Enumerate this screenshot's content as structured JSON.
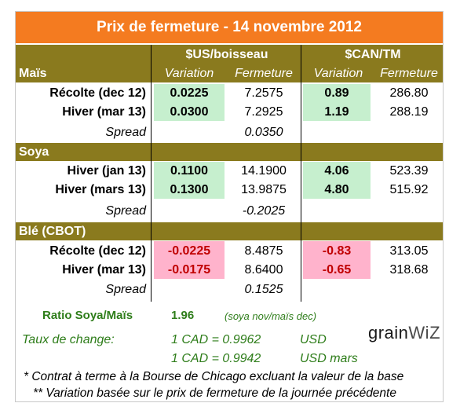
{
  "title": "Prix de fermeture - 14 novembre 2012",
  "headers": {
    "usd_group": "$US/boisseau",
    "cad_group": "$CAN/TM",
    "variation": "Variation",
    "fermeture": "Fermeture"
  },
  "sections": [
    {
      "name": "Maïs",
      "rows": [
        {
          "label": "Récolte (dec 12)",
          "us_var": "0.0225",
          "us_close": "7.2575",
          "cad_var": "0.89",
          "cad_close": "286.80"
        },
        {
          "label": "Hiver (mar 13)",
          "us_var": "0.0300",
          "us_close": "7.2925",
          "cad_var": "1.19",
          "cad_close": "288.19"
        }
      ],
      "spread_label": "Spread",
      "spread": "0.0350"
    },
    {
      "name": "Soya",
      "rows": [
        {
          "label": "Hiver (jan 13)",
          "us_var": "0.1100",
          "us_close": "14.1900",
          "cad_var": "4.06",
          "cad_close": "523.39"
        },
        {
          "label": "Hiver (mars 13)",
          "us_var": "0.1300",
          "us_close": "13.9875",
          "cad_var": "4.80",
          "cad_close": "515.92"
        }
      ],
      "spread_label": "Spread",
      "spread": "-0.2025"
    },
    {
      "name": "Blé (CBOT)",
      "rows": [
        {
          "label": "Récolte (dec 12)",
          "us_var": "-0.0225",
          "us_close": "8.4875",
          "cad_var": "-0.83",
          "cad_close": "313.05"
        },
        {
          "label": "Hiver (mar 13)",
          "us_var": "-0.0175",
          "us_close": "8.6400",
          "cad_var": "-0.65",
          "cad_close": "318.68"
        }
      ],
      "spread_label": "Spread",
      "spread": "0.1525"
    }
  ],
  "ratio": {
    "label": "Ratio Soya/Maïs",
    "value": "1.96",
    "note": "(soya nov/maïs dec)"
  },
  "exchange": {
    "label": "Taux de change:",
    "rate1": "1 CAD =  0.9962",
    "unit1": "USD",
    "rate2": "1 CAD =  0.9942",
    "unit2": "USD mars"
  },
  "footnotes": {
    "one": "* Contrat à terme à la Bourse de Chicago excluant la valeur de la base",
    "two": "** Variation basée sur le prix de fermeture de la journée précédente"
  },
  "logo": {
    "part1": "grain",
    "part2": "WiZ"
  },
  "colors": {
    "title_bg": "#f47b20",
    "band": "#8a7a1e",
    "positive": "#c6efce",
    "negative": "#ffb3cc"
  }
}
